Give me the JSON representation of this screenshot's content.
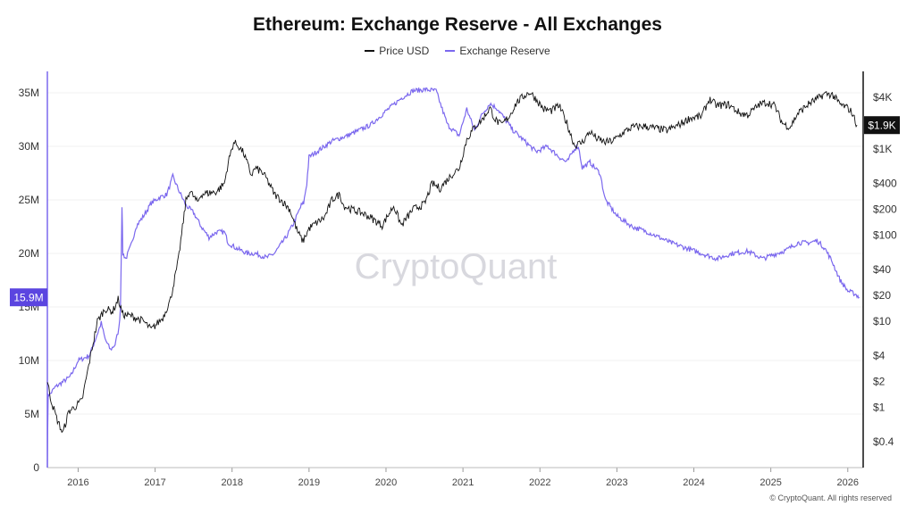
{
  "title": "Ethereum: Exchange Reserve - All Exchanges",
  "watermark": "CryptoQuant",
  "copyright": "© CryptoQuant. All rights reserved",
  "badges": {
    "left": "15.9M",
    "right": "$1.9K"
  },
  "colors": {
    "price": "#111111",
    "reserve": "#7b68ee",
    "badge_left": "#5b45e0",
    "badge_right": "#111111",
    "grid": "#f0f0f0"
  },
  "chart_data": {
    "type": "line",
    "title": "Ethereum: Exchange Reserve - All Exchanges",
    "legend_position": "top-center",
    "grid": true,
    "x_axis": {
      "range": [
        2015.6,
        2026.2
      ],
      "ticks": [
        2016,
        2017,
        2018,
        2019,
        2020,
        2021,
        2022,
        2023,
        2024,
        2025,
        2026
      ],
      "tick_labels": [
        "2016",
        "2017",
        "2018",
        "2019",
        "2020",
        "2021",
        "2022",
        "2023",
        "2024",
        "2025",
        "2026"
      ]
    },
    "y_left": {
      "scale": "linear",
      "range": [
        0,
        37000000
      ],
      "ticks": [
        0,
        5000000,
        10000000,
        15000000,
        20000000,
        25000000,
        30000000,
        35000000
      ],
      "tick_labels": [
        "0",
        "5M",
        "10M",
        "15M",
        "20M",
        "25M",
        "30M",
        "35M"
      ]
    },
    "y_right": {
      "scale": "log",
      "range": [
        0.2,
        8000
      ],
      "ticks": [
        0.4,
        1,
        2,
        4,
        10,
        20,
        40,
        100,
        200,
        400,
        1000,
        4000
      ],
      "tick_labels": [
        "$0.4",
        "$1",
        "$2",
        "$4",
        "$10",
        "$20",
        "$40",
        "$100",
        "$200",
        "$400",
        "$1K",
        "$4K"
      ]
    },
    "series": [
      {
        "name": "Price USD",
        "axis": "right",
        "color": "#111111",
        "x": [
          2015.6,
          2015.65,
          2015.72,
          2015.8,
          2015.88,
          2015.95,
          2016.05,
          2016.15,
          2016.25,
          2016.35,
          2016.45,
          2016.52,
          2016.58,
          2016.7,
          2016.85,
          2016.95,
          2017.1,
          2017.2,
          2017.3,
          2017.4,
          2017.45,
          2017.55,
          2017.6,
          2017.7,
          2017.8,
          2017.9,
          2017.95,
          2018.02,
          2018.08,
          2018.15,
          2018.25,
          2018.3,
          2018.38,
          2018.45,
          2018.55,
          2018.65,
          2018.75,
          2018.85,
          2018.92,
          2019.0,
          2019.1,
          2019.2,
          2019.3,
          2019.4,
          2019.45,
          2019.55,
          2019.7,
          2019.8,
          2019.95,
          2020.1,
          2020.2,
          2020.35,
          2020.5,
          2020.6,
          2020.7,
          2020.85,
          2020.95,
          2021.05,
          2021.15,
          2021.25,
          2021.35,
          2021.42,
          2021.5,
          2021.6,
          2021.7,
          2021.8,
          2021.87,
          2021.95,
          2022.05,
          2022.15,
          2022.25,
          2022.35,
          2022.45,
          2022.55,
          2022.65,
          2022.75,
          2022.85,
          2022.95,
          2023.1,
          2023.2,
          2023.35,
          2023.5,
          2023.65,
          2023.8,
          2023.95,
          2024.1,
          2024.2,
          2024.3,
          2024.45,
          2024.6,
          2024.7,
          2024.85,
          2024.95,
          2025.05,
          2025.15,
          2025.25,
          2025.35,
          2025.5,
          2025.6,
          2025.7,
          2025.8,
          2025.9,
          2026.0,
          2026.05,
          2026.12
        ],
        "values": [
          2.0,
          1.2,
          0.75,
          0.5,
          0.9,
          1.0,
          1.2,
          3.5,
          10,
          14,
          13,
          18,
          12,
          11.5,
          10,
          8,
          11,
          18,
          50,
          250,
          330,
          240,
          300,
          310,
          320,
          400,
          700,
          1200,
          1100,
          900,
          500,
          600,
          550,
          450,
          300,
          250,
          200,
          110,
          85,
          120,
          140,
          160,
          260,
          300,
          220,
          200,
          180,
          160,
          130,
          220,
          130,
          200,
          230,
          400,
          350,
          500,
          600,
          1300,
          1800,
          2200,
          3000,
          2200,
          1900,
          2400,
          3500,
          4200,
          4600,
          3800,
          2900,
          2800,
          3200,
          2000,
          1100,
          1200,
          1600,
          1300,
          1200,
          1250,
          1600,
          1800,
          1850,
          1750,
          1650,
          1900,
          2300,
          2400,
          3800,
          3200,
          3300,
          2600,
          2500,
          3300,
          3500,
          3200,
          2000,
          1800,
          2600,
          3400,
          3800,
          4400,
          4300,
          3300,
          3000,
          2700,
          1900
        ]
      },
      {
        "name": "Exchange Reserve",
        "axis": "left",
        "color": "#7b68ee",
        "x": [
          2015.6,
          2015.61,
          2015.63,
          2015.7,
          2015.8,
          2015.9,
          2016.0,
          2016.1,
          2016.15,
          2016.2,
          2016.3,
          2016.35,
          2016.42,
          2016.48,
          2016.53,
          2016.55,
          2016.57,
          2016.58,
          2016.62,
          2016.7,
          2016.75,
          2016.85,
          2016.95,
          2017.05,
          2017.15,
          2017.2,
          2017.23,
          2017.3,
          2017.4,
          2017.5,
          2017.6,
          2017.7,
          2017.8,
          2017.9,
          2017.95,
          2018.05,
          2018.2,
          2018.3,
          2018.45,
          2018.55,
          2018.7,
          2018.8,
          2018.9,
          2018.93,
          2018.97,
          2019.0,
          2019.1,
          2019.3,
          2019.5,
          2019.8,
          2020.0,
          2020.2,
          2020.35,
          2020.5,
          2020.65,
          2020.8,
          2020.95,
          2021.05,
          2021.15,
          2021.25,
          2021.35,
          2021.45,
          2021.55,
          2021.65,
          2021.8,
          2021.95,
          2022.1,
          2022.25,
          2022.35,
          2022.45,
          2022.5,
          2022.55,
          2022.65,
          2022.78,
          2022.85,
          2023.0,
          2023.2,
          2023.4,
          2023.55,
          2023.7,
          2023.9,
          2024.1,
          2024.3,
          2024.5,
          2024.7,
          2024.9,
          2025.0,
          2025.2,
          2025.35,
          2025.5,
          2025.6,
          2025.7,
          2025.8,
          2025.9,
          2026.0,
          2026.1,
          2026.15
        ],
        "values": [
          0.5,
          6900000,
          6800000,
          7500000,
          8000000,
          8500000,
          10000000,
          10300000,
          10500000,
          11500000,
          13500000,
          12000000,
          11000000,
          11500000,
          13000000,
          15000000,
          24500000,
          20000000,
          19500000,
          21000000,
          22500000,
          23500000,
          24700000,
          25200000,
          25500000,
          26500000,
          27200000,
          26000000,
          24500000,
          23800000,
          22500000,
          21500000,
          22000000,
          22000000,
          21000000,
          20500000,
          20000000,
          20000000,
          19600000,
          20000000,
          21500000,
          22800000,
          24500000,
          24700000,
          26500000,
          29000000,
          29500000,
          30500000,
          31000000,
          32000000,
          33300000,
          34500000,
          35200000,
          35300000,
          35200000,
          32000000,
          31000000,
          33500000,
          31500000,
          33000000,
          34000000,
          33500000,
          32500000,
          31500000,
          30500000,
          29500000,
          30000000,
          29000000,
          28500000,
          29800000,
          30000000,
          28000000,
          28500000,
          27500000,
          25000000,
          23500000,
          22500000,
          22000000,
          21500000,
          21000000,
          20500000,
          20000000,
          19500000,
          20000000,
          20200000,
          19500000,
          19800000,
          20300000,
          21000000,
          21000000,
          21200000,
          20500000,
          19200000,
          17500000,
          16500000,
          16200000,
          15900000
        ]
      }
    ]
  }
}
